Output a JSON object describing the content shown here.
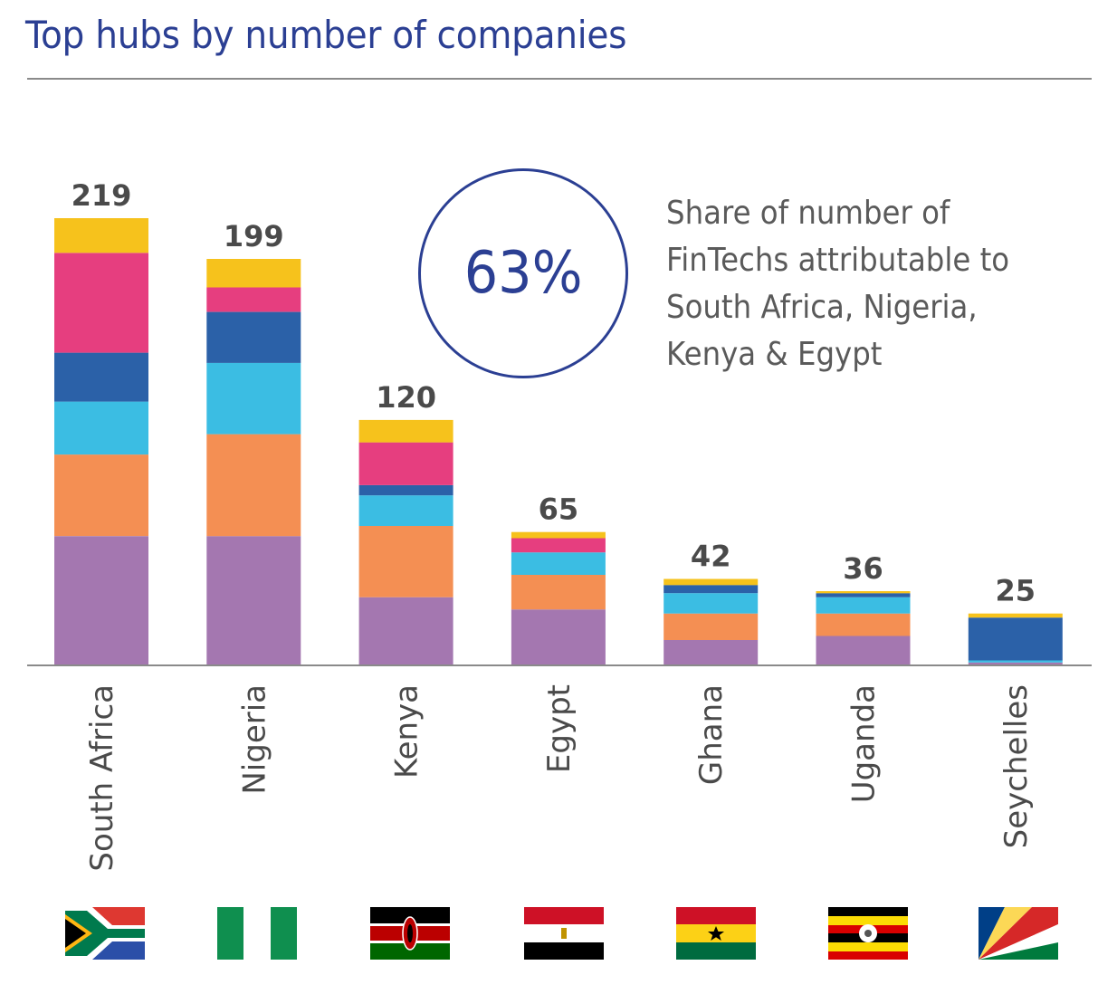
{
  "chart_data": {
    "type": "bar",
    "stacked": true,
    "title": "Top hubs by number of companies",
    "categories": [
      "South Africa",
      "Nigeria",
      "Kenya",
      "Egypt",
      "Ghana",
      "Uganda",
      "Seychelles"
    ],
    "totals": [
      219,
      199,
      120,
      65,
      42,
      36,
      25
    ],
    "series": [
      {
        "name": "segment-1",
        "color": "#a477b0",
        "values": [
          63,
          63,
          33,
          27,
          12,
          14,
          1
        ]
      },
      {
        "name": "segment-2",
        "color": "#f48f53",
        "values": [
          40,
          50,
          35,
          17,
          13,
          11,
          0
        ]
      },
      {
        "name": "segment-3",
        "color": "#3bbde3",
        "values": [
          26,
          35,
          15,
          11,
          10,
          8,
          1
        ]
      },
      {
        "name": "segment-4",
        "color": "#2b61a8",
        "values": [
          24,
          25,
          5,
          0,
          4,
          2,
          21
        ]
      },
      {
        "name": "segment-5",
        "color": "#e63e7f",
        "values": [
          49,
          12,
          21,
          7,
          0,
          0,
          0
        ]
      },
      {
        "name": "segment-6",
        "color": "#f6c21c",
        "values": [
          17,
          14,
          11,
          3,
          3,
          1,
          2
        ]
      }
    ],
    "ylim": [
      0,
      219
    ],
    "xlabel": "",
    "ylabel": ""
  },
  "highlight": {
    "value": "63%",
    "text": "Share of number of FinTechs attributable to South Africa, Nigeria, Kenya & Egypt"
  },
  "flags": [
    {
      "country": "South Africa",
      "icon": "south-africa-flag-icon"
    },
    {
      "country": "Nigeria",
      "icon": "nigeria-flag-icon"
    },
    {
      "country": "Kenya",
      "icon": "kenya-flag-icon"
    },
    {
      "country": "Egypt",
      "icon": "egypt-flag-icon"
    },
    {
      "country": "Ghana",
      "icon": "ghana-flag-icon"
    },
    {
      "country": "Uganda",
      "icon": "uganda-flag-icon"
    },
    {
      "country": "Seychelles",
      "icon": "seychelles-flag-icon"
    }
  ]
}
